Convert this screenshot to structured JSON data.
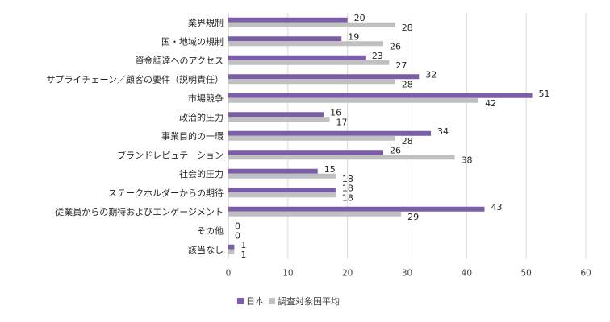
{
  "chart_data": {
    "type": "bar",
    "orientation": "horizontal",
    "categories": [
      "業界規制",
      "国・地域の規制",
      "資金調達へのアクセス",
      "サプライチェーン／顧客の要件（説明責任）",
      "市場競争",
      "政治的圧力",
      "事業目的の一環",
      "ブランドレピュテーション",
      "社会的圧力",
      "ステークホルダーからの期待",
      "従業員からの期待およびエンゲージメント",
      "その他",
      "該当なし"
    ],
    "series": [
      {
        "name": "日本",
        "color": "#7B5EA7",
        "values": [
          20,
          19,
          23,
          32,
          51,
          16,
          34,
          26,
          15,
          18,
          43,
          0,
          1
        ]
      },
      {
        "name": "調査対象国平均",
        "color": "#C0C0C0",
        "values": [
          28,
          26,
          27,
          28,
          42,
          17,
          28,
          38,
          18,
          18,
          29,
          0,
          1
        ]
      }
    ],
    "xlim": [
      0,
      60
    ],
    "xticks": [
      "0",
      "10",
      "20",
      "30",
      "40",
      "50",
      "60"
    ],
    "legend_position": "bottom",
    "gridlines": "vertical"
  }
}
